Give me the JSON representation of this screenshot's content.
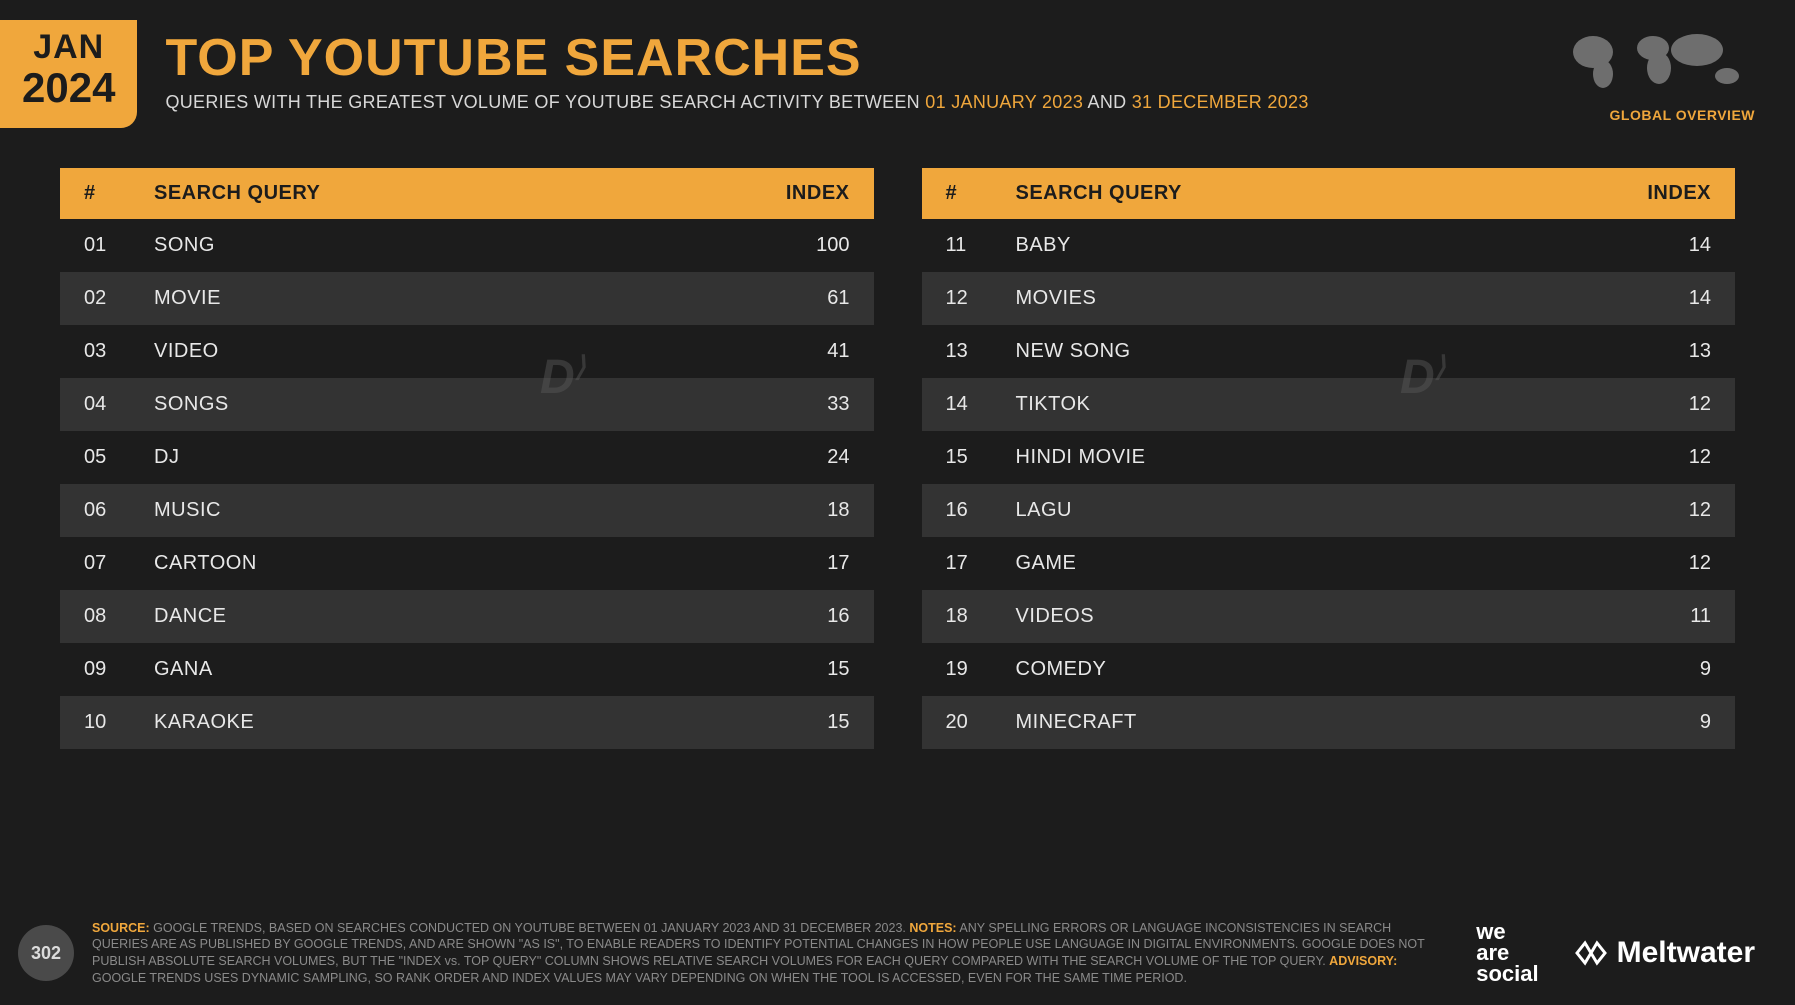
{
  "date_badge": {
    "month": "JAN",
    "year": "2024"
  },
  "title": "TOP YOUTUBE SEARCHES",
  "subtitle": {
    "pre": "QUERIES WITH THE GREATEST VOLUME OF YOUTUBE SEARCH ACTIVITY BETWEEN ",
    "d1": "01 JANUARY 2023",
    "mid": " AND ",
    "d2": "31 DECEMBER 2023"
  },
  "globe_label": "GLOBAL OVERVIEW",
  "headers": {
    "rank": "#",
    "query": "SEARCH QUERY",
    "index": "INDEX"
  },
  "left": [
    {
      "rank": "01",
      "query": "SONG",
      "index": "100"
    },
    {
      "rank": "02",
      "query": "MOVIE",
      "index": "61"
    },
    {
      "rank": "03",
      "query": "VIDEO",
      "index": "41"
    },
    {
      "rank": "04",
      "query": "SONGS",
      "index": "33"
    },
    {
      "rank": "05",
      "query": "DJ",
      "index": "24"
    },
    {
      "rank": "06",
      "query": "MUSIC",
      "index": "18"
    },
    {
      "rank": "07",
      "query": "CARTOON",
      "index": "17"
    },
    {
      "rank": "08",
      "query": "DANCE",
      "index": "16"
    },
    {
      "rank": "09",
      "query": "GANA",
      "index": "15"
    },
    {
      "rank": "10",
      "query": "KARAOKE",
      "index": "15"
    }
  ],
  "right": [
    {
      "rank": "11",
      "query": "BABY",
      "index": "14"
    },
    {
      "rank": "12",
      "query": "MOVIES",
      "index": "14"
    },
    {
      "rank": "13",
      "query": "NEW SONG",
      "index": "13"
    },
    {
      "rank": "14",
      "query": "TIKTOK",
      "index": "12"
    },
    {
      "rank": "15",
      "query": "HINDI MOVIE",
      "index": "12"
    },
    {
      "rank": "16",
      "query": "LAGU",
      "index": "12"
    },
    {
      "rank": "17",
      "query": "GAME",
      "index": "12"
    },
    {
      "rank": "18",
      "query": "VIDEOS",
      "index": "11"
    },
    {
      "rank": "19",
      "query": "COMEDY",
      "index": "9"
    },
    {
      "rank": "20",
      "query": "MINECRAFT",
      "index": "9"
    }
  ],
  "page_number": "302",
  "footer": {
    "source_k": "SOURCE:",
    "source": " GOOGLE TRENDS, BASED ON SEARCHES CONDUCTED ON YOUTUBE BETWEEN 01 JANUARY 2023 AND 31 DECEMBER 2023. ",
    "notes_k": "NOTES:",
    "notes": " ANY SPELLING ERRORS OR LANGUAGE INCONSISTENCIES IN SEARCH QUERIES ARE AS PUBLISHED BY GOOGLE TRENDS, AND ARE SHOWN \"AS IS\", TO ENABLE READERS TO IDENTIFY POTENTIAL CHANGES IN HOW PEOPLE USE LANGUAGE IN DIGITAL ENVIRONMENTS. GOOGLE DOES NOT PUBLISH ABSOLUTE SEARCH VOLUMES, BUT THE \"INDEX vs. TOP QUERY\" COLUMN SHOWS RELATIVE SEARCH VOLUMES FOR EACH QUERY COMPARED WITH THE SEARCH VOLUME OF THE TOP QUERY. ",
    "advisory_k": "ADVISORY:",
    "advisory": " GOOGLE TRENDS USES DYNAMIC SAMPLING, SO RANK ORDER AND INDEX VALUES MAY VARY DEPENDING ON WHEN THE TOOL IS ACCESSED, EVEN FOR THE SAME TIME PERIOD."
  },
  "logos": {
    "was_l1": "we",
    "was_l2": "are",
    "was_l3": "social",
    "meltwater": "Meltwater"
  },
  "colors": {
    "accent": "#f0a73c",
    "bg": "#1c1c1c",
    "row_alt": "#333333",
    "text": "#e8e8e8",
    "muted": "#8a8a8a"
  }
}
